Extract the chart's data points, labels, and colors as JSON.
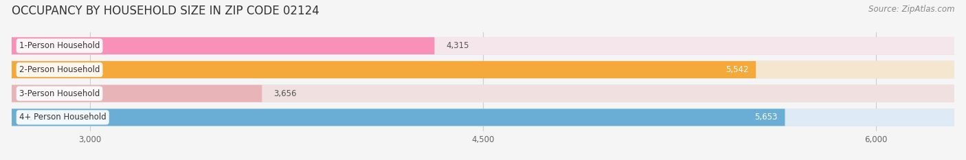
{
  "title": "OCCUPANCY BY HOUSEHOLD SIZE IN ZIP CODE 02124",
  "source": "Source: ZipAtlas.com",
  "categories": [
    "1-Person Household",
    "2-Person Household",
    "3-Person Household",
    "4+ Person Household"
  ],
  "values": [
    4315,
    5542,
    3656,
    5653
  ],
  "bar_colors": [
    "#f890b8",
    "#f5a93a",
    "#e8b4b8",
    "#6aaed6"
  ],
  "bar_bg_colors": [
    "#f5e6ec",
    "#f5e6d0",
    "#f0e0e0",
    "#deeaf5"
  ],
  "value_inside_color": [
    "#555555",
    "#ffffff",
    "#555555",
    "#ffffff"
  ],
  "xlim_left": 2700,
  "xlim_right": 6300,
  "xticks": [
    3000,
    4500,
    6000
  ],
  "background_color": "#f5f5f5",
  "row_bg_color": "#ffffff",
  "title_fontsize": 12,
  "source_fontsize": 8.5,
  "label_fontsize": 8.5,
  "value_fontsize": 8.5
}
